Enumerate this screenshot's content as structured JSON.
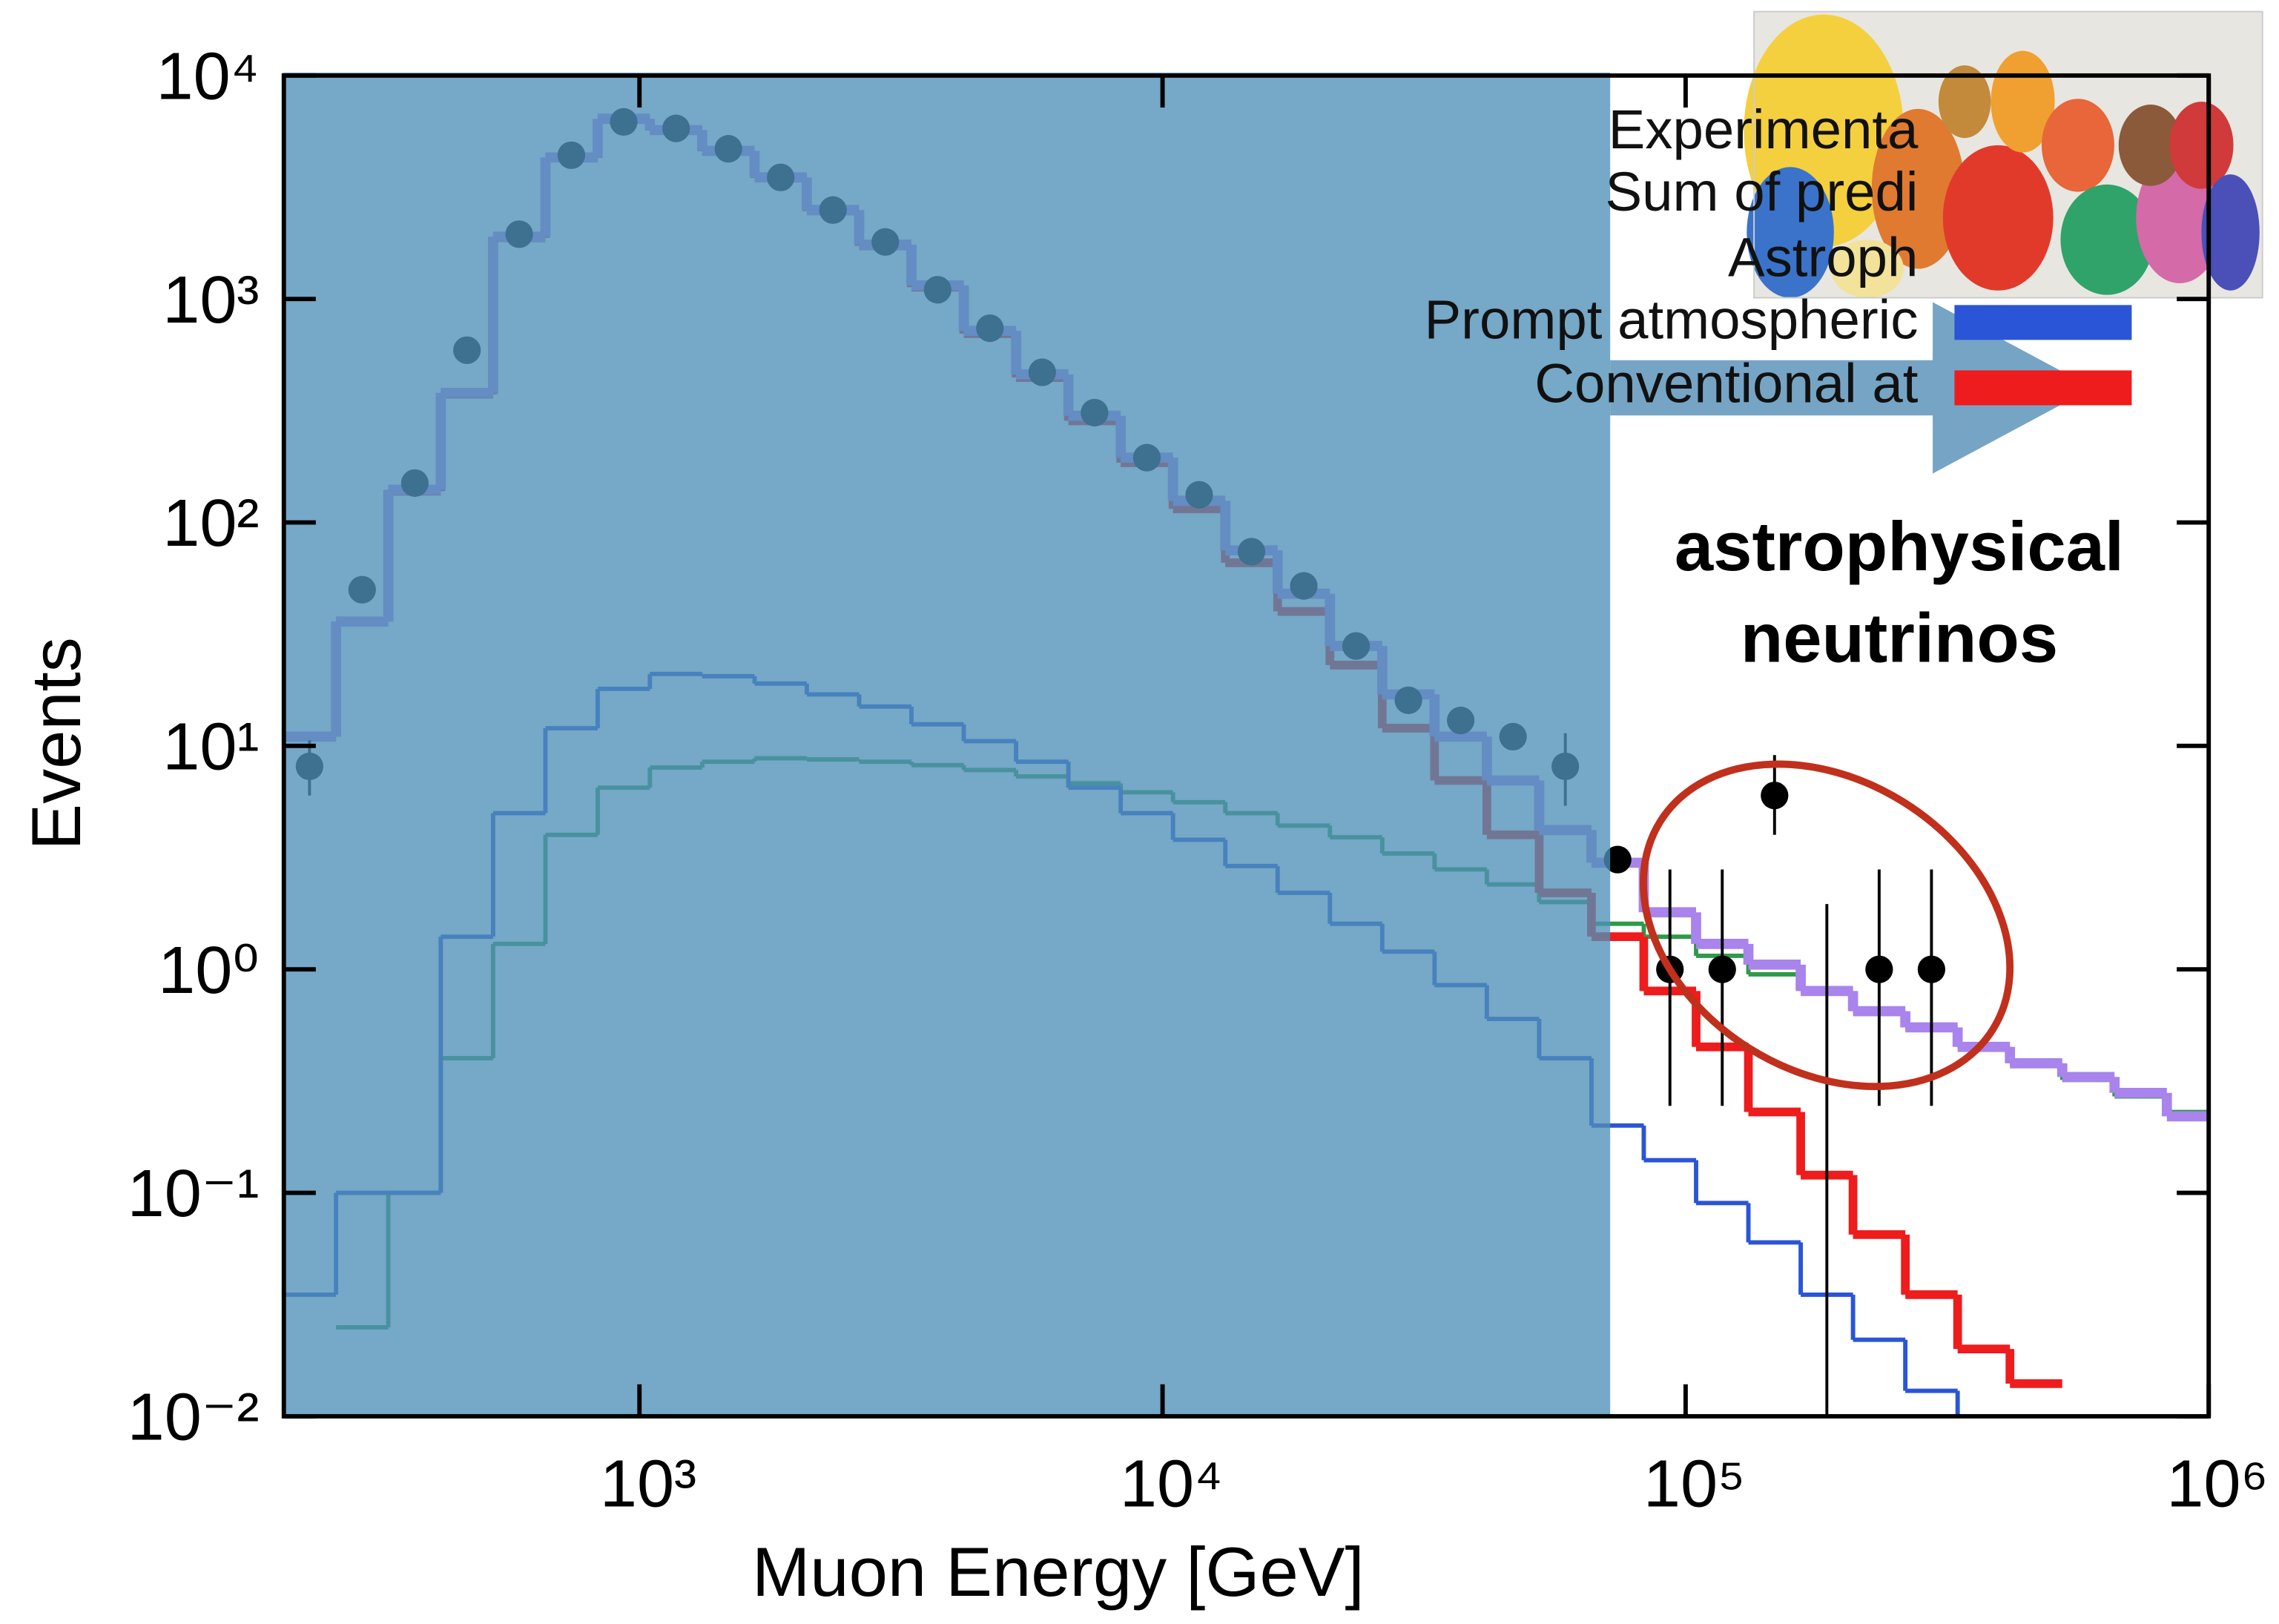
{
  "chart_data": {
    "type": "histogram",
    "x_label": "Muon Energy  [GeV]",
    "y_label": "Events",
    "log_x": true,
    "log_y": true,
    "xlim": [
      209,
      1000000
    ],
    "ylim": [
      0.01,
      10000
    ],
    "xticks": [
      {
        "value": 1000,
        "label": "10³"
      },
      {
        "value": 10000,
        "label": "10⁴"
      },
      {
        "value": 100000,
        "label": "10⁵"
      },
      {
        "value": 1000000,
        "label": "10⁶"
      }
    ],
    "yticks": [
      {
        "value": 0.01,
        "label": "10⁻²"
      },
      {
        "value": 0.1,
        "label": "10⁻¹"
      },
      {
        "value": 1,
        "label": "10⁰"
      },
      {
        "value": 10,
        "label": "10¹"
      },
      {
        "value": 100,
        "label": "10²"
      },
      {
        "value": 1000,
        "label": "10³"
      },
      {
        "value": 10000,
        "label": "10⁴"
      }
    ],
    "bins": [
      209,
      263,
      331,
      417,
      525,
      661,
      832,
      1047,
      1318,
      1660,
      2089,
      2630,
      3311,
      4169,
      5248,
      6607,
      8318,
      10471,
      13183,
      16596,
      20893,
      26303,
      33113,
      41687,
      52481,
      66069,
      83176,
      104713,
      131826,
      165959,
      208930,
      263027,
      331131,
      416869,
      524807,
      660693,
      831764,
      1047129
    ],
    "series": [
      {
        "name": "Sum of predi",
        "color": "#a884ec",
        "values": [
          11,
          36,
          140,
          380,
          1900,
          4300,
          6400,
          5700,
          4600,
          3500,
          2500,
          1750,
          1150,
          720,
          460,
          300,
          195,
          125,
          75,
          48,
          28,
          17,
          11,
          7,
          4.2,
          3,
          1.8,
          1.3,
          1.05,
          0.8,
          0.65,
          0.55,
          0.45,
          0.38,
          0.33,
          0.28,
          0.22
        ]
      },
      {
        "name": "Astroph",
        "color": "#2e9a4a",
        "values": [
          null,
          0.025,
          0.1,
          0.4,
          1.3,
          4,
          6.5,
          8,
          8.5,
          8.8,
          8.7,
          8.5,
          8.2,
          7.8,
          7.3,
          6.8,
          6.2,
          5.6,
          5,
          4.4,
          3.9,
          3.3,
          2.8,
          2.4,
          2,
          1.6,
          1.4,
          1.15,
          0.95,
          0.8,
          0.65,
          0.55,
          0.45,
          0.38,
          0.32,
          0.27,
          0.23
        ]
      },
      {
        "name": "Prompt atmospheric",
        "color": "#2a55d6",
        "values": [
          0.035,
          0.1,
          0.1,
          1.4,
          5,
          12,
          18,
          21,
          20.5,
          19,
          17,
          15,
          12.5,
          10.5,
          8.5,
          6.5,
          5,
          3.8,
          2.9,
          2.2,
          1.6,
          1.2,
          0.85,
          0.6,
          0.4,
          0.2,
          0.14,
          0.09,
          0.06,
          0.035,
          0.022,
          0.013,
          0.01,
          null,
          null,
          null,
          null
        ]
      },
      {
        "name": "Conventional at",
        "color": "#ee1c1c",
        "values": [
          11,
          36,
          138,
          375,
          1880,
          4280,
          6380,
          5680,
          4580,
          3480,
          2480,
          1730,
          1130,
          700,
          445,
          285,
          185,
          115,
          66,
          40,
          23,
          12,
          7,
          4,
          2.2,
          1.4,
          0.8,
          0.45,
          0.23,
          0.12,
          0.065,
          0.035,
          0.02,
          0.014,
          null,
          null,
          null
        ]
      }
    ],
    "points": {
      "name": "Experimenta",
      "color": "#000000",
      "x": [
        234,
        295,
        372,
        468,
        589,
        741,
        933,
        1175,
        1479,
        1862,
        2344,
        2951,
        3715,
        4677,
        5888,
        7413,
        9333,
        11749,
        14791,
        18621,
        23442,
        29512,
        37154,
        46774,
        58884,
        74131,
        93325,
        117490,
        147911,
        186209,
        234423,
        295121
      ],
      "values": [
        8.1,
        50,
        150,
        590,
        1950,
        4400,
        6200,
        5800,
        4700,
        3500,
        2500,
        1800,
        1100,
        740,
        470,
        310,
        195,
        133,
        74,
        52,
        28,
        16,
        13,
        11,
        8.1,
        3.1,
        1,
        1,
        6,
        null,
        1,
        1
      ],
      "lower": [
        6,
        null,
        null,
        null,
        null,
        null,
        null,
        null,
        null,
        null,
        null,
        null,
        null,
        null,
        null,
        null,
        null,
        null,
        null,
        null,
        null,
        null,
        null,
        null,
        5.4,
        null,
        0.245,
        0.245,
        4,
        0.01,
        0.245,
        0.245
      ],
      "upper": [
        10.6,
        null,
        null,
        null,
        null,
        null,
        null,
        null,
        null,
        null,
        null,
        null,
        null,
        null,
        null,
        null,
        null,
        null,
        null,
        null,
        null,
        null,
        null,
        null,
        11.4,
        null,
        2.8,
        2.8,
        9.1,
        1.96,
        2.8,
        2.8
      ]
    },
    "annotations": [
      "astrophysical",
      "neutrinos"
    ]
  }
}
